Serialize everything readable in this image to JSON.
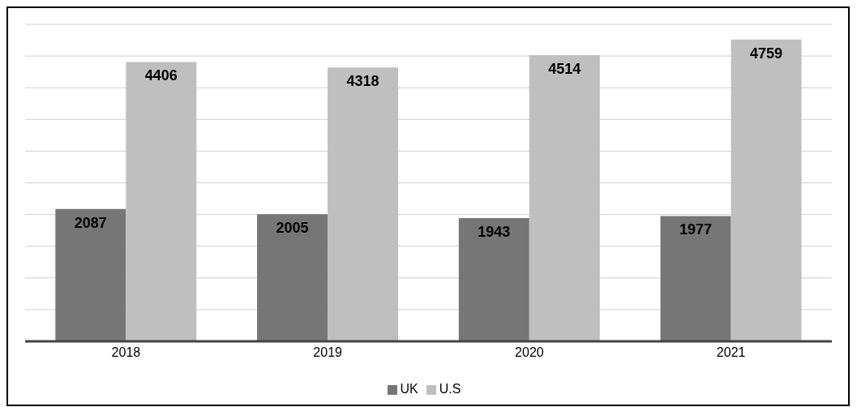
{
  "chart_data": {
    "type": "bar",
    "categories": [
      "2018",
      "2019",
      "2020",
      "2021"
    ],
    "series": [
      {
        "name": "UK",
        "color": "#767676",
        "values": [
          2087,
          2005,
          1943,
          1977
        ]
      },
      {
        "name": "U.S",
        "color": "#bfbfbf",
        "values": [
          4406,
          4318,
          4514,
          4759
        ]
      }
    ],
    "tick_labels": "x",
    "grid": "y",
    "legend": "bottom",
    "data_labels": true
  }
}
